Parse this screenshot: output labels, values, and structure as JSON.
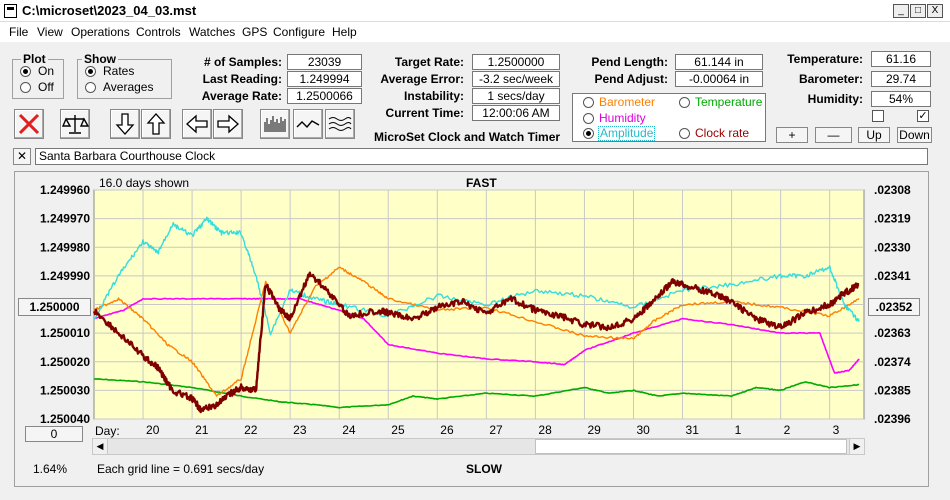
{
  "window": {
    "title": "C:\\microset\\2023_04_03.mst",
    "min": "_",
    "max": "□",
    "close": "X"
  },
  "menu": [
    "File",
    "View",
    "Operations",
    "Controls",
    "Watches",
    "GPS",
    "Configure",
    "Help"
  ],
  "plot_group": {
    "label": "Plot",
    "options": [
      "On",
      "Off"
    ],
    "selected": 0
  },
  "show_group": {
    "label": "Show",
    "options": [
      "Rates",
      "Averages"
    ],
    "selected": 0
  },
  "stats": {
    "samples_label": "# of Samples:",
    "samples": "23039",
    "last_label": "Last Reading:",
    "last": "1.249994",
    "avg_label": "Average Rate:",
    "avg": "1.2500066"
  },
  "targets": {
    "target_label": "Target Rate:",
    "target": "1.2500000",
    "error_label": "Average Error:",
    "error": "-3.2 sec/week",
    "instab_label": "Instability:",
    "instab": "1 secs/day",
    "time_label": "Current Time:",
    "time": "12:00:06 AM"
  },
  "pend": {
    "length_label": "Pend Length:",
    "length": "61.144 in",
    "adjust_label": "Pend Adjust:",
    "adjust": "-0.00064 in"
  },
  "env": {
    "temp_label": "Temperature:",
    "temp": "61.16",
    "baro_label": "Barometer:",
    "baro": "29.74",
    "hum_label": "Humidity:",
    "hum": "54%"
  },
  "series_select": {
    "barometer": "Barometer",
    "temperature": "Temperature",
    "humidity": "Humidity",
    "amplitude": "Amplitude",
    "clockrate": "Clock rate",
    "selected": "amplitude"
  },
  "app_caption": "MicroSet Clock and Watch Timer",
  "adj_buttons": {
    "plus": "+",
    "minus": "—",
    "up": "Up",
    "down": "Down"
  },
  "clock_name": "Santa Barbara Courthouse Clock",
  "clear_x": "✕",
  "colors": {
    "plot_bg": "#ffffc8",
    "rate": "#800000",
    "temperature": "#00aa00",
    "humidity": "#ff00ff",
    "barometer": "#ff8000",
    "amplitude": "#33dddd"
  },
  "chart_data": {
    "type": "line",
    "top_label": "FAST",
    "bottom_label": "SLOW",
    "days_shown": "16.0 days shown",
    "grid_note": "Each grid line = 0.691 secs/day",
    "percent": "1.64%",
    "day_label": "Day:",
    "left_value_button": "1.250000",
    "right_value_button": ".02352",
    "zero_button": "0",
    "left_ticks": [
      "1.249960",
      "1.249970",
      "1.249980",
      "1.249990",
      "1.250000",
      "1.250010",
      "1.250020",
      "1.250030",
      "1.250040"
    ],
    "right_ticks": [
      ".02308",
      ".02319",
      ".02330",
      ".02341",
      ".02352",
      ".02363",
      ".02374",
      ".02385",
      ".02396"
    ],
    "x_ticks": [
      "20",
      "21",
      "22",
      "23",
      "24",
      "25",
      "26",
      "27",
      "28",
      "29",
      "30",
      "31",
      "1",
      "2",
      "3"
    ],
    "x_range": [
      19.0,
      34.7
    ],
    "y_range": [
      1.24996,
      1.25004
    ],
    "series": [
      {
        "key": "temperature",
        "x": [
          19,
          20,
          21,
          22,
          22.8,
          23.5,
          24,
          25,
          25.5,
          26,
          27,
          28,
          29,
          29.5,
          30,
          30.5,
          31,
          32,
          32.5,
          33,
          33.5,
          34,
          34.6
        ],
        "y": [
          1.250026,
          1.250027,
          1.250029,
          1.250032,
          1.250034,
          1.250035,
          1.250036,
          1.250035,
          1.250032,
          1.250033,
          1.250031,
          1.250032,
          1.250029,
          1.250031,
          1.25003,
          1.250032,
          1.250031,
          1.250032,
          1.250029,
          1.25003,
          1.250027,
          1.250029,
          1.250028
        ]
      },
      {
        "key": "humidity",
        "x": [
          19,
          19.6,
          20,
          21,
          22,
          22.6,
          23.2,
          24,
          24.5,
          25,
          26,
          27,
          28,
          28.6,
          29,
          30,
          31,
          32,
          33,
          33.8,
          34.1,
          34.4,
          34.6
        ],
        "y": [
          1.250005,
          1.250002,
          1.249998,
          1.249998,
          1.249998,
          1.249998,
          1.249998,
          1.250002,
          1.250005,
          1.250014,
          1.250017,
          1.250019,
          1.25002,
          1.250021,
          1.250016,
          1.25001,
          1.250005,
          1.250007,
          1.25001,
          1.25001,
          1.250024,
          1.250023,
          1.250019
        ]
      },
      {
        "key": "barometer",
        "x": [
          19,
          19.5,
          20,
          20.5,
          21,
          21.5,
          22,
          22.5,
          23,
          23.5,
          24,
          24.5,
          25,
          26,
          27,
          28,
          29,
          30,
          30.4,
          31,
          32,
          33,
          34,
          34.6
        ],
        "y": [
          1.250002,
          1.249998,
          1.250005,
          1.250014,
          1.25002,
          1.250032,
          1.250026,
          1.249992,
          1.25001,
          1.249994,
          1.249987,
          1.249992,
          1.249998,
          1.250002,
          1.250001,
          1.250006,
          1.250011,
          1.250012,
          1.250006,
          1.25,
          1.249999,
          1.250001,
          1.250004,
          1.249998
        ]
      },
      {
        "key": "amplitude",
        "x": [
          19,
          19.5,
          20,
          20.3,
          20.6,
          21,
          21.3,
          21.6,
          22,
          22.3,
          22.6,
          23,
          23.5,
          24,
          25,
          26,
          27,
          28,
          29,
          30,
          31,
          32,
          33,
          33.5,
          34,
          34.3,
          34.6
        ],
        "y": [
          1.250005,
          1.24999,
          1.249978,
          1.249982,
          1.249972,
          1.249976,
          1.24997,
          1.249975,
          1.249975,
          1.24999,
          1.25001,
          1.249995,
          1.249998,
          1.25,
          1.250004,
          1.249997,
          1.25,
          1.249995,
          1.249997,
          1.250001,
          1.249995,
          1.249993,
          1.24999,
          1.24999,
          1.249987,
          1.25,
          1.250006
        ]
      },
      {
        "key": "rate",
        "x": [
          19,
          19.5,
          20,
          20.3,
          20.6,
          21,
          21.2,
          21.5,
          21.8,
          22,
          22.3,
          22.5,
          22.8,
          23,
          23.4,
          23.8,
          24.2,
          24.8,
          25,
          25.5,
          26,
          26.5,
          27,
          27.5,
          28,
          28.5,
          29,
          29.5,
          30,
          30.4,
          30.8,
          31.2,
          31.6,
          32,
          32.5,
          33,
          33.5,
          34,
          34.3,
          34.6
        ],
        "y": [
          1.250002,
          1.25001,
          1.250018,
          1.250022,
          1.25003,
          1.250033,
          1.250037,
          1.250035,
          1.250031,
          1.250029,
          1.25003,
          1.249993,
          1.250002,
          1.250005,
          1.249989,
          1.249996,
          1.250004,
          1.250002,
          1.250003,
          1.250005,
          1.250001,
          1.249999,
          1.250003,
          1.249998,
          1.250002,
          1.250004,
          1.250007,
          1.250008,
          1.250005,
          1.249999,
          1.249992,
          1.249994,
          1.249996,
          1.249999,
          1.250005,
          1.250008,
          1.250003,
          1.25,
          1.249996,
          1.249993
        ]
      }
    ]
  }
}
